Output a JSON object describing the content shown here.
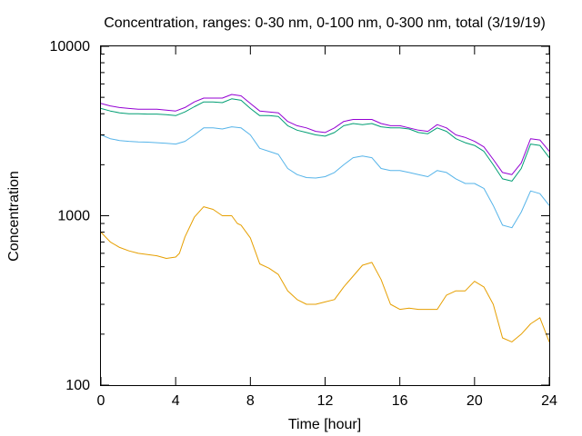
{
  "chart_data": {
    "type": "line",
    "title": "Concentration, ranges: 0-30 nm, 0-100 nm, 0-300 nm, total (3/19/19)",
    "xlabel": "Time [hour]",
    "ylabel": "Concentration",
    "xlim": [
      0,
      24
    ],
    "ylim": [
      100,
      10000
    ],
    "y_scale": "log",
    "grid": false,
    "legend": "none",
    "x_ticks": [
      0,
      4,
      8,
      12,
      16,
      20,
      24
    ],
    "x_tick_labels": [
      "0",
      "4",
      "8",
      "12",
      "16",
      "20",
      "24"
    ],
    "y_ticks": [
      100,
      1000,
      10000
    ],
    "y_tick_labels": [
      "100",
      "1000",
      "10000"
    ],
    "series": [
      {
        "color": "#e69f00",
        "x": [
          0,
          0.5,
          1,
          1.5,
          2,
          2.5,
          3,
          3.5,
          4,
          4.2,
          4.5,
          5,
          5.5,
          6,
          6.5,
          7,
          7.3,
          7.5,
          8,
          8.3,
          8.5,
          9,
          9.5,
          10,
          10.5,
          11,
          11.5,
          12,
          12.5,
          13,
          13.5,
          14,
          14.5,
          15,
          15.5,
          16,
          16.5,
          17,
          17.5,
          18,
          18.5,
          19,
          19.5,
          20,
          20.5,
          21,
          21.5,
          22,
          22.5,
          23,
          23.5,
          24
        ],
        "values": [
          800,
          700,
          650,
          620,
          600,
          590,
          580,
          560,
          570,
          600,
          750,
          980,
          1130,
          1090,
          1000,
          1000,
          900,
          880,
          740,
          600,
          520,
          490,
          450,
          360,
          320,
          300,
          300,
          310,
          320,
          380,
          440,
          510,
          530,
          420,
          300,
          280,
          285,
          280,
          280,
          280,
          340,
          360,
          360,
          410,
          380,
          300,
          190,
          180,
          200,
          230,
          250,
          180
        ]
      },
      {
        "color": "#56b4e9",
        "x": [
          0,
          0.5,
          1,
          1.5,
          2,
          2.5,
          3,
          3.5,
          4,
          4.5,
          5,
          5.5,
          6,
          6.5,
          7,
          7.5,
          8,
          8.5,
          9,
          9.5,
          10,
          10.5,
          11,
          11.5,
          12,
          12.5,
          13,
          13.5,
          14,
          14.5,
          15,
          15.5,
          16,
          16.5,
          17,
          17.5,
          18,
          18.5,
          19,
          19.5,
          20,
          20.5,
          21,
          21.5,
          22,
          22.5,
          23,
          23.5,
          24
        ],
        "values": [
          3000,
          2850,
          2780,
          2750,
          2730,
          2720,
          2700,
          2680,
          2650,
          2750,
          3000,
          3300,
          3300,
          3250,
          3350,
          3300,
          3000,
          2500,
          2400,
          2300,
          1900,
          1750,
          1680,
          1670,
          1700,
          1800,
          2000,
          2200,
          2250,
          2200,
          1900,
          1850,
          1850,
          1800,
          1750,
          1700,
          1850,
          1800,
          1650,
          1550,
          1550,
          1450,
          1150,
          880,
          850,
          1050,
          1400,
          1350,
          1150
        ]
      },
      {
        "color": "#009e73",
        "x": [
          0,
          0.5,
          1,
          1.5,
          2,
          2.5,
          3,
          3.5,
          4,
          4.5,
          5,
          5.5,
          6,
          6.5,
          7,
          7.5,
          8,
          8.5,
          9,
          9.5,
          10,
          10.5,
          11,
          11.5,
          12,
          12.5,
          13,
          13.5,
          14,
          14.5,
          15,
          15.5,
          16,
          16.5,
          17,
          17.5,
          18,
          18.5,
          19,
          19.5,
          20,
          20.5,
          21,
          21.5,
          22,
          22.5,
          23,
          23.5,
          24
        ],
        "values": [
          4300,
          4150,
          4050,
          4000,
          4000,
          3980,
          3980,
          3950,
          3900,
          4100,
          4400,
          4700,
          4700,
          4650,
          4900,
          4800,
          4300,
          3900,
          3900,
          3850,
          3400,
          3200,
          3100,
          3000,
          2950,
          3100,
          3400,
          3500,
          3450,
          3500,
          3350,
          3300,
          3300,
          3250,
          3100,
          3050,
          3300,
          3150,
          2850,
          2700,
          2600,
          2400,
          2000,
          1650,
          1600,
          1900,
          2650,
          2600,
          2200
        ]
      },
      {
        "color": "#9400d3",
        "x": [
          0,
          0.5,
          1,
          1.5,
          2,
          2.5,
          3,
          3.5,
          4,
          4.5,
          5,
          5.5,
          6,
          6.5,
          7,
          7.5,
          8,
          8.5,
          9,
          9.5,
          10,
          10.5,
          11,
          11.5,
          12,
          12.5,
          13,
          13.5,
          14,
          14.5,
          15,
          15.5,
          16,
          16.5,
          17,
          17.5,
          18,
          18.5,
          19,
          19.5,
          20,
          20.5,
          21,
          21.5,
          22,
          22.5,
          23,
          23.5,
          24
        ],
        "values": [
          4600,
          4450,
          4350,
          4300,
          4250,
          4250,
          4250,
          4200,
          4150,
          4350,
          4700,
          4950,
          4950,
          4950,
          5200,
          5100,
          4600,
          4150,
          4100,
          4050,
          3600,
          3400,
          3300,
          3150,
          3100,
          3300,
          3600,
          3700,
          3700,
          3700,
          3500,
          3400,
          3400,
          3300,
          3200,
          3150,
          3450,
          3300,
          3000,
          2900,
          2750,
          2550,
          2150,
          1800,
          1750,
          2050,
          2850,
          2800,
          2400
        ]
      }
    ]
  }
}
